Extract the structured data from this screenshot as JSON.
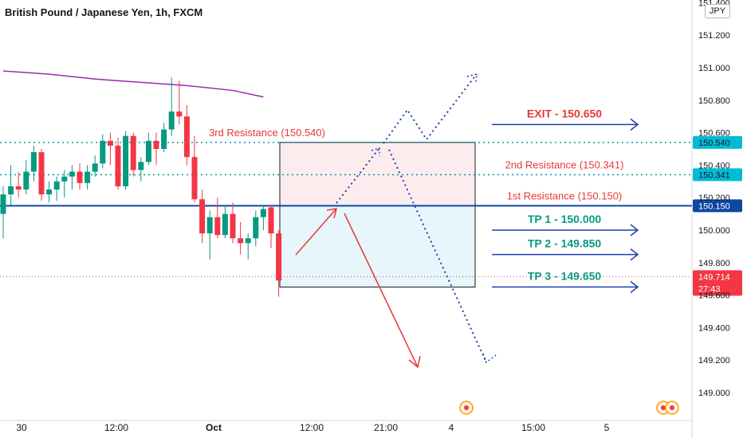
{
  "title": "British Pound / Japanese Yen, 1h, FXCM",
  "currency": "JPY",
  "chart_data": {
    "type": "candlestick",
    "y_ticks": [
      "151.400",
      "151.200",
      "151.000",
      "150.800",
      "150.600",
      "150.400",
      "150.200",
      "150.000",
      "149.800",
      "149.600",
      "149.400",
      "149.200",
      "149.000"
    ],
    "x_ticks": [
      "30",
      "12:00",
      "Oct",
      "12:00",
      "21:00",
      "4",
      "15:00",
      "5"
    ],
    "candles": [
      {
        "o": 150.1,
        "h": 150.27,
        "l": 149.95,
        "c": 150.22
      },
      {
        "o": 150.22,
        "h": 150.4,
        "l": 150.15,
        "c": 150.27
      },
      {
        "o": 150.27,
        "h": 150.36,
        "l": 150.2,
        "c": 150.25
      },
      {
        "o": 150.25,
        "h": 150.43,
        "l": 150.22,
        "c": 150.36
      },
      {
        "o": 150.36,
        "h": 150.52,
        "l": 150.3,
        "c": 150.48
      },
      {
        "o": 150.48,
        "h": 150.5,
        "l": 150.18,
        "c": 150.22
      },
      {
        "o": 150.22,
        "h": 150.3,
        "l": 150.17,
        "c": 150.25
      },
      {
        "o": 150.25,
        "h": 150.33,
        "l": 150.18,
        "c": 150.3
      },
      {
        "o": 150.3,
        "h": 150.37,
        "l": 150.2,
        "c": 150.33
      },
      {
        "o": 150.33,
        "h": 150.4,
        "l": 150.25,
        "c": 150.36
      },
      {
        "o": 150.36,
        "h": 150.41,
        "l": 150.25,
        "c": 150.29
      },
      {
        "o": 150.29,
        "h": 150.4,
        "l": 150.25,
        "c": 150.36
      },
      {
        "o": 150.36,
        "h": 150.46,
        "l": 150.33,
        "c": 150.41
      },
      {
        "o": 150.41,
        "h": 150.59,
        "l": 150.38,
        "c": 150.55
      },
      {
        "o": 150.55,
        "h": 150.6,
        "l": 150.4,
        "c": 150.52
      },
      {
        "o": 150.52,
        "h": 150.57,
        "l": 150.25,
        "c": 150.27
      },
      {
        "o": 150.27,
        "h": 150.61,
        "l": 150.25,
        "c": 150.58
      },
      {
        "o": 150.58,
        "h": 150.6,
        "l": 150.33,
        "c": 150.37
      },
      {
        "o": 150.37,
        "h": 150.45,
        "l": 150.3,
        "c": 150.42
      },
      {
        "o": 150.42,
        "h": 150.6,
        "l": 150.4,
        "c": 150.55
      },
      {
        "o": 150.55,
        "h": 150.6,
        "l": 150.4,
        "c": 150.5
      },
      {
        "o": 150.5,
        "h": 150.66,
        "l": 150.48,
        "c": 150.62
      },
      {
        "o": 150.62,
        "h": 150.94,
        "l": 150.58,
        "c": 150.73
      },
      {
        "o": 150.73,
        "h": 150.92,
        "l": 150.65,
        "c": 150.7
      },
      {
        "o": 150.7,
        "h": 150.77,
        "l": 150.4,
        "c": 150.45
      },
      {
        "o": 150.45,
        "h": 150.58,
        "l": 150.17,
        "c": 150.19
      },
      {
        "o": 150.19,
        "h": 150.25,
        "l": 149.92,
        "c": 149.98
      },
      {
        "o": 149.98,
        "h": 150.12,
        "l": 149.82,
        "c": 150.08
      },
      {
        "o": 150.08,
        "h": 150.2,
        "l": 149.95,
        "c": 149.97
      },
      {
        "o": 149.97,
        "h": 150.15,
        "l": 149.95,
        "c": 150.1
      },
      {
        "o": 150.1,
        "h": 150.17,
        "l": 149.92,
        "c": 149.95
      },
      {
        "o": 149.95,
        "h": 150.05,
        "l": 149.85,
        "c": 149.92
      },
      {
        "o": 149.92,
        "h": 149.98,
        "l": 149.82,
        "c": 149.95
      },
      {
        "o": 149.95,
        "h": 150.12,
        "l": 149.9,
        "c": 150.08
      },
      {
        "o": 150.08,
        "h": 150.15,
        "l": 150.0,
        "c": 150.13
      },
      {
        "o": 150.14,
        "h": 150.15,
        "l": 149.89,
        "c": 149.98
      },
      {
        "o": 149.98,
        "h": 150.0,
        "l": 149.59,
        "c": 149.69
      }
    ],
    "moving_average": [
      {
        "i": 0,
        "v": 150.98
      },
      {
        "i": 6,
        "v": 150.96
      },
      {
        "i": 12,
        "v": 150.93
      },
      {
        "i": 18,
        "v": 150.91
      },
      {
        "i": 24,
        "v": 150.89
      },
      {
        "i": 30,
        "v": 150.86
      },
      {
        "i": 34,
        "v": 150.82
      }
    ],
    "levels": [
      {
        "name": "3rd Resistance (150.540)",
        "price": 150.54,
        "tag": "150.540",
        "style": "dotted",
        "label_side": "left"
      },
      {
        "name": "2nd Resistance (150.341)",
        "price": 150.341,
        "tag": "150.341",
        "style": "dotted",
        "label_side": "right"
      },
      {
        "name": "1st Resistance (150.150)",
        "price": 150.15,
        "tag": "150.150",
        "style": "solid",
        "label_side": "right"
      }
    ],
    "current_price": {
      "value": "149.714",
      "countdown": "27:43",
      "price": 149.714
    },
    "targets": [
      {
        "label": "EXIT - 150.650",
        "price": 150.65,
        "color": "#e53935"
      },
      {
        "label": "TP 1 - 150.000",
        "price": 150.0,
        "color": "#089981"
      },
      {
        "label": "TP 2 - 149.850",
        "price": 149.85,
        "color": "#089981"
      },
      {
        "label": "TP 3 - 149.650",
        "price": 149.65,
        "color": "#089981"
      }
    ],
    "colors": {
      "up": "#089981",
      "down": "#f23645",
      "level": "#0097a7",
      "solid_level": "#0d47a1",
      "ma": "#9c27b0",
      "arrow_red": "#e53935",
      "arrow_blue": "#1e40af"
    }
  }
}
